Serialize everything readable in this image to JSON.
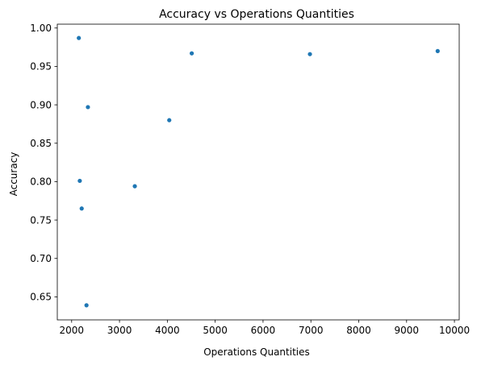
{
  "chart_data": {
    "type": "scatter",
    "title": "Accuracy vs Operations Quantities",
    "xlabel": "Operations Quantities",
    "ylabel": "Accuracy",
    "xlim": [
      1700,
      10100
    ],
    "ylim": [
      0.62,
      1.005
    ],
    "xticks": [
      2000,
      3000,
      4000,
      5000,
      6000,
      7000,
      8000,
      9000,
      10000
    ],
    "xtick_labels": [
      "2000",
      "3000",
      "4000",
      "5000",
      "6000",
      "7000",
      "8000",
      "9000",
      "10000"
    ],
    "yticks": [
      0.65,
      0.7,
      0.75,
      0.8,
      0.85,
      0.9,
      0.95,
      1.0
    ],
    "ytick_labels": [
      "0.65",
      "0.70",
      "0.75",
      "0.80",
      "0.85",
      "0.90",
      "0.95",
      "1.00"
    ],
    "grid": false,
    "legend": "none",
    "marker_color": "#1f77b4",
    "points": [
      {
        "x": 2150,
        "y": 0.987
      },
      {
        "x": 2170,
        "y": 0.801
      },
      {
        "x": 2210,
        "y": 0.765
      },
      {
        "x": 2310,
        "y": 0.639
      },
      {
        "x": 2340,
        "y": 0.897
      },
      {
        "x": 3320,
        "y": 0.794
      },
      {
        "x": 4040,
        "y": 0.88
      },
      {
        "x": 4510,
        "y": 0.967
      },
      {
        "x": 6980,
        "y": 0.966
      },
      {
        "x": 9650,
        "y": 0.97
      }
    ]
  }
}
